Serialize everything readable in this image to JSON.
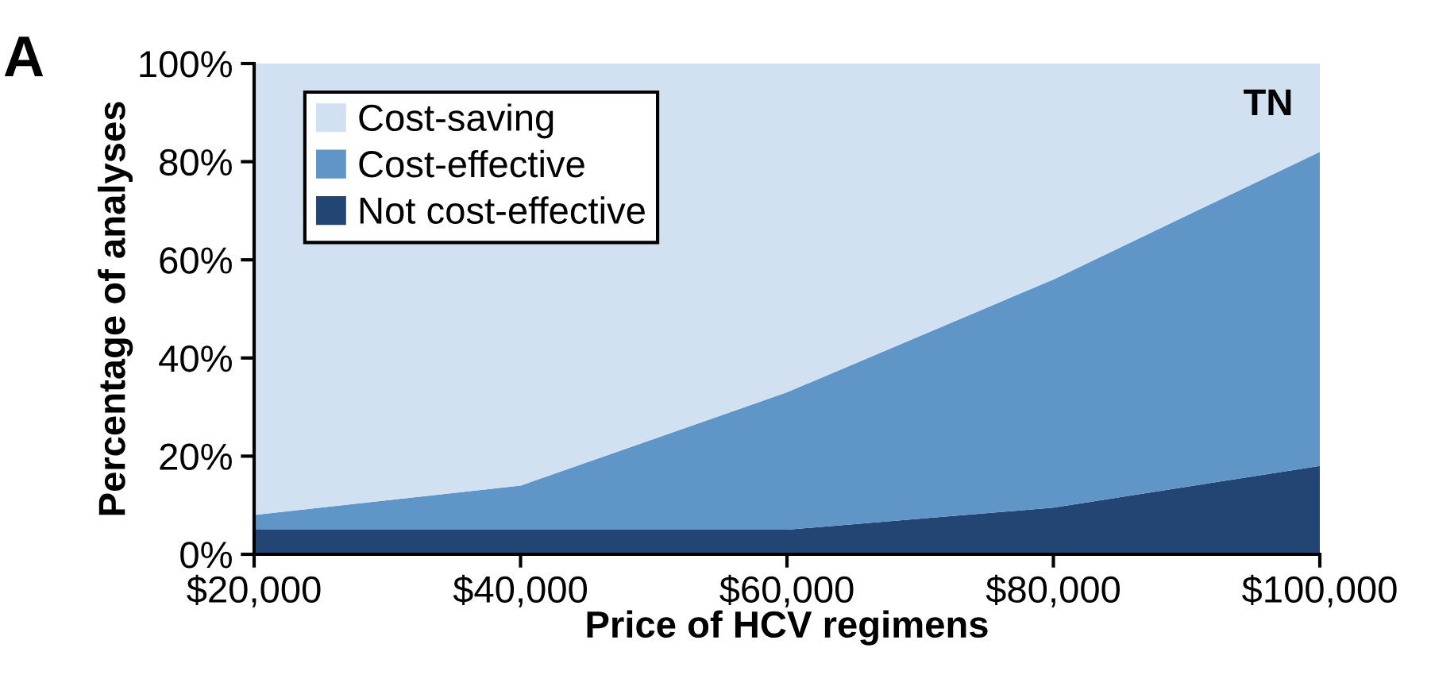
{
  "chart_data": {
    "type": "area",
    "stacked": true,
    "x": [
      20000,
      40000,
      60000,
      80000,
      100000
    ],
    "xlabel": "Price of HCV regimens",
    "ylabel": "Percentage of analyses",
    "xlim": [
      20000,
      100000
    ],
    "xticks": [
      {
        "value": 20000,
        "label": "$20,000"
      },
      {
        "value": 40000,
        "label": "$40,000"
      },
      {
        "value": 60000,
        "label": "$60,000"
      },
      {
        "value": 80000,
        "label": "$80,000"
      },
      {
        "value": 100000,
        "label": "$100,000"
      }
    ],
    "ylim": [
      0,
      100
    ],
    "yticks": [
      {
        "value": 0,
        "label": "0%"
      },
      {
        "value": 20,
        "label": "20%"
      },
      {
        "value": 40,
        "label": "40%"
      },
      {
        "value": 60,
        "label": "60%"
      },
      {
        "value": 80,
        "label": "80%"
      },
      {
        "value": 100,
        "label": "100%"
      }
    ],
    "series": [
      {
        "name": "Not cost-effective",
        "color": "#234574",
        "values": [
          5,
          5,
          5,
          9.5,
          18
        ]
      },
      {
        "name": "Cost-effective",
        "color": "#6095c8",
        "values": [
          3,
          9,
          28,
          46.5,
          64
        ]
      },
      {
        "name": "Cost-saving",
        "color": "#d1e1f2",
        "values": [
          92,
          86,
          67,
          44,
          18
        ]
      }
    ],
    "annotations": [
      "A",
      "TN"
    ],
    "legend": "top left",
    "grid": false
  }
}
